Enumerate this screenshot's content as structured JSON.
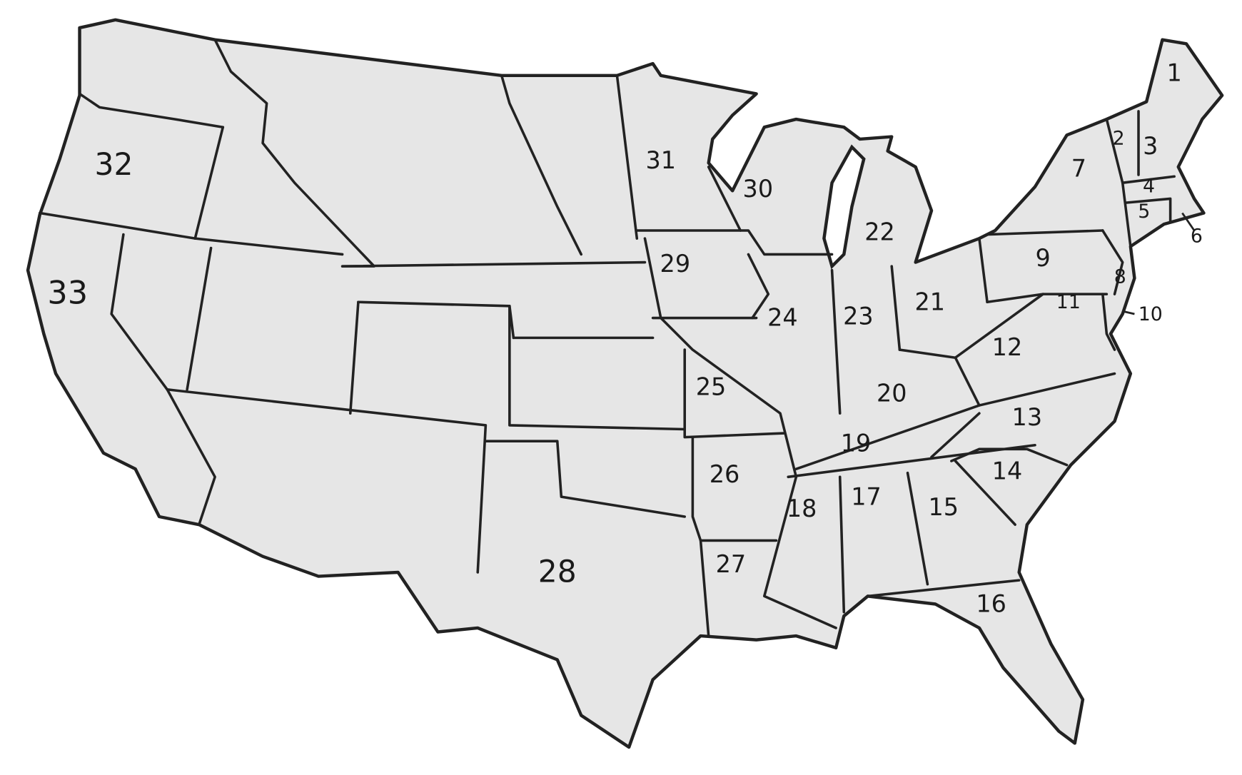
{
  "map": {
    "fill_color": "#e6e6e6",
    "border_color": "#222222",
    "labels": [
      "1",
      "2",
      "3",
      "4",
      "5",
      "6",
      "7",
      "8",
      "9",
      "10",
      "11",
      "12",
      "13",
      "14",
      "15",
      "16",
      "17",
      "18",
      "19",
      "20",
      "21",
      "22",
      "23",
      "24",
      "25",
      "26",
      "27",
      "28",
      "29",
      "30",
      "31",
      "32",
      "33"
    ]
  }
}
